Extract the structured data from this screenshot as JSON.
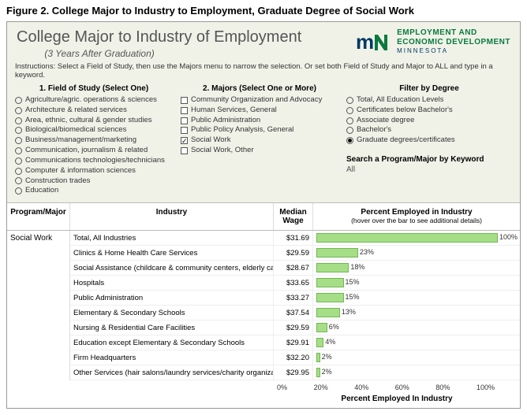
{
  "caption": "Figure 2. College Major to Industry to Employment, Graduate Degree of Social Work",
  "title": "College Major to Industry of Employment",
  "subtitle": "(3 Years After Graduation)",
  "logo": {
    "org_top": "EMPLOYMENT AND",
    "org_bot": "ECONOMIC DEVELOPMENT",
    "state": "MINNESOTA"
  },
  "instructions": "Instructions: Select a Field of Study, then use the Majors menu to narrow the selection. Or set both Field of Study and Major to ALL and type in a keyword.",
  "filters": {
    "field_head": "1. Field of Study (Select One)",
    "majors_head": "2. Majors (Select One or More)",
    "degree_head": "Filter by Degree",
    "search_head": "Search a Program/Major by Keyword",
    "search_value": "All",
    "fields": [
      "Agriculture/agric. operations & sciences",
      "Architecture & related services",
      "Area, ethnic, cultural & gender studies",
      "Biological/biomedical sciences",
      "Business/management/marketing",
      "Communication, journalism & related",
      "Communications technologies/technicians",
      "Computer & information sciences",
      "Construction trades",
      "Education"
    ],
    "fields_selected": [
      false,
      false,
      false,
      false,
      false,
      false,
      false,
      false,
      false,
      false
    ],
    "majors": [
      "Community Organization and Advocacy",
      "Human Services, General",
      "Public Administration",
      "Public Policy Analysis, General",
      "Social Work",
      "Social Work, Other"
    ],
    "majors_selected": [
      false,
      false,
      false,
      false,
      true,
      false
    ],
    "degrees": [
      "Total, All Education Levels",
      "Certificates below Bachelor's",
      "Associate degree",
      "Bachelor's",
      "Graduate degrees/certificates"
    ],
    "degrees_selected": [
      false,
      false,
      false,
      false,
      true
    ]
  },
  "table": {
    "headers": {
      "pm": "Program/Major",
      "ind": "Industry",
      "mw": "Median Wage",
      "pc": "Percent Employed in Industry",
      "pc_sub": "(hover over the bar to see additional details)"
    },
    "program": "Social Work",
    "rows": [
      {
        "industry": "Total, All Industries",
        "wage": "$31.69",
        "pct": 100
      },
      {
        "industry": "Clinics & Home Health Care Services",
        "wage": "$29.59",
        "pct": 23
      },
      {
        "industry": "Social Assistance (childcare & community centers, elderly car..",
        "wage": "$28.67",
        "pct": 18
      },
      {
        "industry": "Hospitals",
        "wage": "$33.65",
        "pct": 15
      },
      {
        "industry": "Public Administration",
        "wage": "$33.27",
        "pct": 15
      },
      {
        "industry": "Elementary & Secondary Schools",
        "wage": "$37.54",
        "pct": 13
      },
      {
        "industry": "Nursing & Residential Care Facilities",
        "wage": "$29.59",
        "pct": 6
      },
      {
        "industry": "Education except Elementary & Secondary Schools",
        "wage": "$29.91",
        "pct": 4
      },
      {
        "industry": "Firm Headquarters",
        "wage": "$32.20",
        "pct": 2
      },
      {
        "industry": "Other Services (hair salons/laundry services/charity organiza..",
        "wage": "$29.95",
        "pct": 2
      }
    ],
    "axis_ticks": [
      "0%",
      "20%",
      "40%",
      "60%",
      "80%",
      "100%"
    ],
    "axis_label": "Percent Employed In Industry",
    "bar_color": "#a6de87",
    "bar_border": "#6fb850",
    "bar_max": 100
  }
}
